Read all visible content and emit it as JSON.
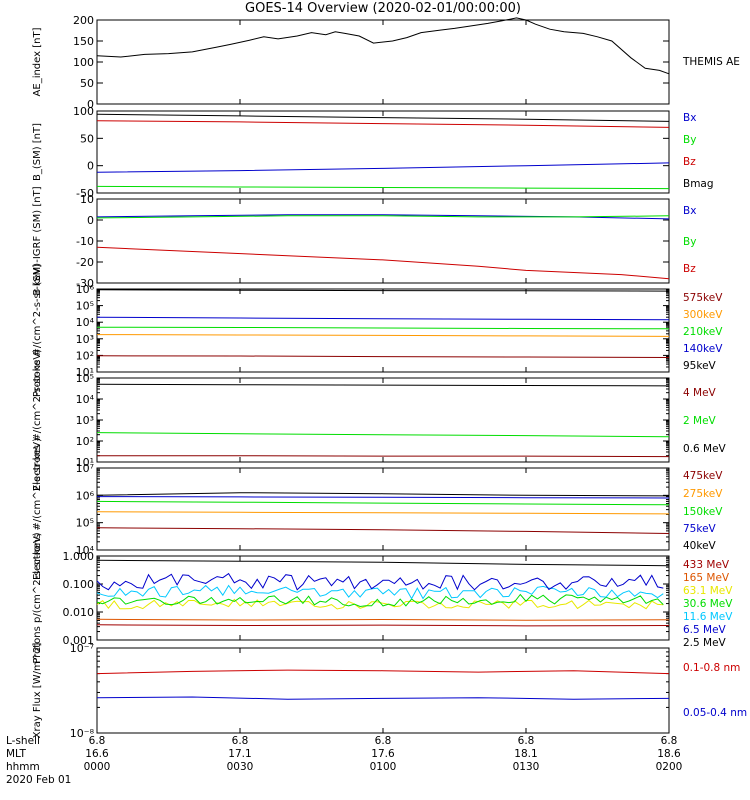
{
  "title": "GOES-14 Overview (2020-02-01/00:00:00)",
  "colors": {
    "black": "#000000",
    "red": "#cc0000",
    "green": "#00dd00",
    "blue": "#0000cc",
    "orange": "#ff9900",
    "yellow": "#e8e800",
    "cyan": "#00c8ff",
    "darkred": "#8b0000",
    "purple": "#5a0090",
    "burnt": "#dd5500",
    "brown": "#a00000"
  },
  "xaxis": {
    "rows": [
      {
        "label": "L-shell",
        "ticks": [
          "6.8",
          "6.8",
          "6.8",
          "6.8",
          "6.8"
        ]
      },
      {
        "label": "MLT",
        "ticks": [
          "16.6",
          "17.1",
          "17.6",
          "18.1",
          "18.6"
        ]
      },
      {
        "label": "hhmm",
        "ticks": [
          "0000",
          "0030",
          "0100",
          "0130",
          "0200"
        ]
      }
    ],
    "date": "2020 Feb 01",
    "tick_times": [
      0,
      30,
      60,
      90,
      120
    ],
    "range": [
      0,
      120
    ]
  },
  "chart_data": [
    {
      "type": "line",
      "ylabel": "AE_index [nT]",
      "ylim": [
        0,
        200
      ],
      "yticks": [
        0,
        50,
        100,
        150,
        200
      ],
      "ytick_labels": [
        "0",
        "50",
        "100",
        "150",
        "200"
      ],
      "legend_placement": "right",
      "series": [
        {
          "name": "THEMIS AE",
          "color": "black",
          "x": [
            0,
            5,
            10,
            15,
            20,
            25,
            28,
            32,
            35,
            38,
            42,
            45,
            48,
            50,
            52,
            55,
            58,
            62,
            65,
            68,
            72,
            75,
            78,
            82,
            85,
            88,
            90,
            92,
            95,
            98,
            102,
            105,
            108,
            112,
            115,
            118,
            120
          ],
          "y": [
            115,
            112,
            118,
            120,
            124,
            135,
            142,
            152,
            160,
            155,
            162,
            170,
            165,
            172,
            168,
            162,
            145,
            150,
            158,
            170,
            176,
            180,
            185,
            192,
            198,
            205,
            200,
            190,
            178,
            172,
            168,
            160,
            150,
            110,
            85,
            80,
            72
          ]
        }
      ]
    },
    {
      "type": "line",
      "ylabel": "B_(SM) [nT]",
      "ylim": [
        -50,
        100
      ],
      "yticks": [
        -50,
        0,
        50,
        100
      ],
      "ytick_labels": [
        "-50",
        "0",
        "50",
        "100"
      ],
      "legend_placement": "right",
      "series": [
        {
          "name": "Bx",
          "color": "blue",
          "x": [
            0,
            30,
            60,
            90,
            120
          ],
          "y": [
            -12,
            -9,
            -5,
            0,
            5
          ]
        },
        {
          "name": "By",
          "color": "green",
          "x": [
            0,
            30,
            60,
            90,
            120
          ],
          "y": [
            -38,
            -39,
            -40,
            -41,
            -42
          ]
        },
        {
          "name": "Bz",
          "color": "red",
          "x": [
            0,
            30,
            60,
            90,
            120
          ],
          "y": [
            82,
            80,
            77,
            74,
            70
          ]
        },
        {
          "name": "Bmag",
          "color": "black",
          "x": [
            0,
            30,
            60,
            90,
            120
          ],
          "y": [
            94,
            91,
            88,
            85,
            81
          ]
        }
      ]
    },
    {
      "type": "line",
      "ylabel": "B (SM)-IGRF (SM) [nT]",
      "ylim": [
        -30,
        10
      ],
      "yticks": [
        -30,
        -20,
        -10,
        0,
        10
      ],
      "ytick_labels": [
        "-30",
        "-20",
        "-10",
        "0",
        "10"
      ],
      "legend_placement": "right",
      "series": [
        {
          "name": "Bx",
          "color": "blue",
          "x": [
            0,
            20,
            40,
            60,
            80,
            100,
            120
          ],
          "y": [
            1.5,
            2,
            2.5,
            2.5,
            2,
            1.5,
            0.5
          ]
        },
        {
          "name": "By",
          "color": "green",
          "x": [
            0,
            20,
            40,
            60,
            80,
            100,
            120
          ],
          "y": [
            1,
            1.5,
            2,
            2,
            1.5,
            1.5,
            2
          ]
        },
        {
          "name": "Bz",
          "color": "red",
          "x": [
            0,
            20,
            40,
            60,
            80,
            90,
            100,
            110,
            120
          ],
          "y": [
            -13,
            -15,
            -17,
            -19,
            -22,
            -24,
            -25,
            -26,
            -28
          ]
        }
      ]
    },
    {
      "type": "line",
      "ylabel": "Protons #/(cm^2-s-sr-keV)",
      "yscale": "log",
      "ylim": [
        10,
        1000000
      ],
      "yticks": [
        10,
        100,
        1000,
        10000,
        100000,
        1000000
      ],
      "ytick_labels": [
        "10¹",
        "10²",
        "10³",
        "10⁴",
        "10⁵",
        "10⁶"
      ],
      "legend_placement": "right",
      "series": [
        {
          "name": "575keV",
          "color": "darkred",
          "x": [
            0,
            30,
            60,
            90,
            120
          ],
          "y": [
            95,
            92,
            85,
            80,
            75
          ]
        },
        {
          "name": "300keV",
          "color": "orange",
          "x": [
            0,
            30,
            60,
            90,
            120
          ],
          "y": [
            1800,
            1700,
            1600,
            1500,
            1400
          ]
        },
        {
          "name": "210keV",
          "color": "green",
          "x": [
            0,
            30,
            60,
            90,
            120
          ],
          "y": [
            5000,
            4800,
            4500,
            4200,
            4000
          ]
        },
        {
          "name": "140keV",
          "color": "blue",
          "x": [
            0,
            30,
            60,
            90,
            120
          ],
          "y": [
            20000,
            18000,
            16000,
            15000,
            14000
          ]
        },
        {
          "name": "95keV",
          "color": "black",
          "x": [
            0,
            30,
            60,
            90,
            120
          ],
          "y": [
            900000,
            850000,
            800000,
            780000,
            750000
          ]
        }
      ]
    },
    {
      "type": "line",
      "ylabel": "Electrons #/(cm^2-s-sr-keV)",
      "yscale": "log",
      "ylim": [
        10,
        100000
      ],
      "yticks": [
        10,
        100,
        1000,
        10000,
        100000
      ],
      "ytick_labels": [
        "10¹",
        "10²",
        "10³",
        "10⁴",
        "10⁵"
      ],
      "legend_placement": "right",
      "series": [
        {
          "name": "4 MeV",
          "color": "darkred",
          "x": [
            0,
            30,
            60,
            90,
            120
          ],
          "y": [
            20,
            20,
            19,
            19,
            18
          ]
        },
        {
          "name": "2 MeV",
          "color": "green",
          "x": [
            0,
            30,
            60,
            90,
            120
          ],
          "y": [
            250,
            220,
            200,
            180,
            160
          ]
        },
        {
          "name": "0.6 MeV",
          "color": "black",
          "x": [
            0,
            30,
            60,
            90,
            120
          ],
          "y": [
            50000,
            48000,
            46000,
            44000,
            42000
          ]
        }
      ]
    },
    {
      "type": "line",
      "ylabel": "Electrons #/(cm^2-s-sr-keV)",
      "yscale": "log",
      "ylim": [
        10000,
        10000000
      ],
      "yticks": [
        10000,
        100000,
        1000000,
        10000000
      ],
      "ytick_labels": [
        "10⁴",
        "10⁵",
        "10⁶",
        "10⁷"
      ],
      "legend_placement": "right",
      "series": [
        {
          "name": "475keV",
          "color": "darkred",
          "x": [
            0,
            30,
            60,
            90,
            120
          ],
          "y": [
            65000,
            60000,
            55000,
            48000,
            40000
          ]
        },
        {
          "name": "275keV",
          "color": "orange",
          "x": [
            0,
            30,
            60,
            90,
            120
          ],
          "y": [
            250000,
            240000,
            230000,
            220000,
            210000
          ]
        },
        {
          "name": "150keV",
          "color": "green",
          "x": [
            0,
            30,
            60,
            90,
            120
          ],
          "y": [
            600000,
            560000,
            520000,
            480000,
            450000
          ]
        },
        {
          "name": "75keV",
          "color": "blue",
          "x": [
            0,
            30,
            60,
            90,
            120
          ],
          "y": [
            900000,
            880000,
            850000,
            820000,
            800000
          ]
        },
        {
          "name": "40keV",
          "color": "black",
          "x": [
            0,
            30,
            60,
            90,
            120
          ],
          "y": [
            1000000,
            1250000,
            1150000,
            1000000,
            950000
          ]
        }
      ]
    },
    {
      "type": "line",
      "ylabel": "Protons p/(cm^2-s-sr-keV)",
      "yscale": "log",
      "ylim": [
        0.001,
        1
      ],
      "yticks": [
        0.001,
        0.01,
        0.1,
        1
      ],
      "ytick_labels": [
        "0.001",
        "0.010",
        "0.100",
        "1.000"
      ],
      "legend_placement": "right",
      "series": [
        {
          "name": "433 MeV",
          "color": "brown",
          "x": [
            0,
            30,
            60,
            90,
            120
          ],
          "y": [
            0.0035,
            0.0033,
            0.0034,
            0.0032,
            0.0033
          ]
        },
        {
          "name": "165 MeV",
          "color": "burnt",
          "x": [
            0,
            30,
            60,
            90,
            120
          ],
          "y": [
            0.0055,
            0.0052,
            0.0054,
            0.0051,
            0.0053
          ]
        },
        {
          "name": "63.1 MeV",
          "color": "yellow",
          "x": [
            0,
            30,
            60,
            90,
            120
          ],
          "y": [
            0.018,
            0.02,
            0.017,
            0.019,
            0.018
          ]
        },
        {
          "name": "30.6 MeV",
          "color": "green",
          "x": [
            0,
            30,
            60,
            90,
            120
          ],
          "y": [
            0.025,
            0.028,
            0.022,
            0.03,
            0.024
          ]
        },
        {
          "name": "11.6 MeV",
          "color": "cyan",
          "x": [
            0,
            30,
            60,
            90,
            120
          ],
          "y": [
            0.05,
            0.06,
            0.045,
            0.055,
            0.05
          ]
        },
        {
          "name": "6.5 MeV",
          "color": "blue",
          "x": [
            0,
            30,
            60,
            90,
            120
          ],
          "y": [
            0.11,
            0.13,
            0.1,
            0.12,
            0.11
          ]
        },
        {
          "name": "2.5 MeV",
          "color": "black",
          "x": [
            0,
            30,
            60,
            90,
            120
          ],
          "y": [
            0.7,
            0.65,
            0.6,
            0.5,
            0.45
          ]
        }
      ]
    },
    {
      "type": "line",
      "ylabel": "Xray Flux [W/m^2]",
      "yscale": "log",
      "ylim": [
        1e-08,
        1e-07
      ],
      "yticks": [
        1e-08,
        1e-07
      ],
      "ytick_labels": [
        "10⁻⁸",
        "10⁻⁷"
      ],
      "legend_placement": "right",
      "series": [
        {
          "name": "0.1-0.8 nm",
          "color": "red",
          "x": [
            0,
            20,
            40,
            60,
            80,
            100,
            120
          ],
          "y": [
            5e-08,
            5.3e-08,
            5.5e-08,
            5.4e-08,
            5.2e-08,
            5.4e-08,
            5e-08
          ]
        },
        {
          "name": "0.05-0.4 nm",
          "color": "blue",
          "x": [
            0,
            20,
            40,
            60,
            80,
            100,
            120
          ],
          "y": [
            2.6e-08,
            2.65e-08,
            2.5e-08,
            2.55e-08,
            2.6e-08,
            2.5e-08,
            2.55e-08
          ]
        }
      ]
    }
  ]
}
